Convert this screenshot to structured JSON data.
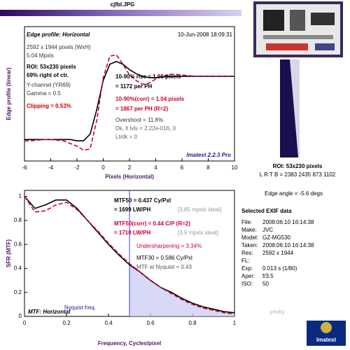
{
  "header": {
    "title": "cjfbl.JPG"
  },
  "chart_data": [
    {
      "type": "line",
      "xlabel": "Pixels (Horizontal)",
      "ylabel": "Edge profile (linear)",
      "x": [
        -6,
        -5.5,
        -5,
        -4.5,
        -4,
        -3.5,
        -3,
        -2.5,
        -2,
        -1.5,
        -1,
        -0.5,
        0,
        0.5,
        1,
        1.5,
        2,
        2.5,
        3,
        3.5,
        4,
        4.5,
        5,
        5.5,
        6,
        6.5,
        7,
        7.5,
        8,
        8.5,
        9,
        9.5,
        10
      ],
      "xlim": [
        -6,
        10
      ],
      "xticks": [
        -6,
        -4,
        -2,
        0,
        2,
        4,
        6,
        8,
        10
      ],
      "ylim": [
        0,
        1
      ],
      "series": [
        {
          "color": "#000000",
          "dash": false,
          "values": [
            0.16,
            0.16,
            0.16,
            0.16,
            0.16,
            0.16,
            0.16,
            0.16,
            0.15,
            0.15,
            0.2,
            0.38,
            0.6,
            0.72,
            0.74,
            0.72,
            0.68,
            0.65,
            0.63,
            0.62,
            0.62,
            0.625,
            0.63,
            0.63,
            0.63,
            0.63,
            0.63,
            0.63,
            0.63,
            0.63,
            0.63,
            0.63,
            0.63
          ]
        },
        {
          "color": "#cc0033",
          "dash": true,
          "values": [
            0.15,
            0.15,
            0.155,
            0.16,
            0.16,
            0.155,
            0.15,
            0.13,
            0.11,
            0.08,
            0.09,
            0.3,
            0.62,
            0.78,
            0.79,
            0.72,
            0.64,
            0.6,
            0.57,
            0.58,
            0.61,
            0.63,
            0.645,
            0.645,
            0.64,
            0.635,
            0.63,
            0.63,
            0.63,
            0.63,
            0.63,
            0.63,
            0.63
          ]
        }
      ],
      "annotations": [
        {
          "text": "Edge profile: Horizontal",
          "color": "#000000"
        },
        {
          "text": "10-Jun-2008 18:09:31",
          "color": "#000000"
        },
        {
          "text": "2592 x 1944 pixels (WxH)",
          "color": "#333333"
        },
        {
          "text": "5.04 Mpxls",
          "color": "#333333"
        },
        {
          "text": "ROI: 53x230 pixels",
          "color": "#000000"
        },
        {
          "text": "69% right of ctr.",
          "color": "#000000"
        },
        {
          "text": "Y-channel (YR69)",
          "color": "#333333"
        },
        {
          "text": "Gamma = 0.5",
          "color": "#333333"
        },
        {
          "text": "Clipping =  0.53%",
          "color": "#cc0000"
        },
        {
          "text": "10-90% rise = 1.66 pixels",
          "color": "#000000"
        },
        {
          "text": "= 1172 per PH",
          "color": "#000000"
        },
        {
          "text": "10-90%(corr) = 1.04 pixels",
          "color": "#cc0033"
        },
        {
          "text": "= 1867 per PH  (R=2)",
          "color": "#cc0033"
        },
        {
          "text": "Overshoot = 11.6%",
          "color": "#333333"
        },
        {
          "text": "Dk, lt lvls = 2.22e-016, 0",
          "color": "#666666"
        },
        {
          "text": "Lt/dk = 0",
          "color": "#666666"
        },
        {
          "text": "Imatest 2.2.3 Pro",
          "color": "#1a1aa0"
        }
      ]
    },
    {
      "type": "line",
      "xlabel": "Frequency, Cycles/pixel",
      "ylabel": "SFR (MTF)",
      "x": [
        0,
        0.05,
        0.1,
        0.15,
        0.2,
        0.25,
        0.3,
        0.35,
        0.4,
        0.45,
        0.5,
        0.55,
        0.6,
        0.65,
        0.7,
        0.75,
        0.8,
        0.85,
        0.9,
        0.95,
        1
      ],
      "xlim": [
        0,
        1
      ],
      "xticks": [
        0,
        0.2,
        0.4,
        0.6,
        0.8,
        1
      ],
      "ylim": [
        0,
        1.05
      ],
      "yticks": [
        0,
        0.2,
        0.4,
        0.6,
        0.8,
        1
      ],
      "nyquist": 0.5,
      "series": [
        {
          "color": "#000000",
          "dash": false,
          "values": [
            1,
            0.9,
            0.93,
            0.97,
            0.97,
            0.9,
            0.8,
            0.7,
            0.6,
            0.51,
            0.43,
            0.37,
            0.3,
            0.24,
            0.2,
            0.15,
            0.11,
            0.08,
            0.06,
            0.04,
            0.03
          ]
        },
        {
          "color": "#cc0033",
          "dash": true,
          "values": [
            1,
            0.87,
            0.88,
            0.93,
            0.95,
            0.89,
            0.8,
            0.71,
            0.61,
            0.52,
            0.44,
            0.37,
            0.3,
            0.24,
            0.19,
            0.14,
            0.1,
            0.07,
            0.05,
            0.03,
            0.02
          ]
        }
      ],
      "annotations": [
        {
          "text": "MTF50 = 0.437 Cy/Pxl",
          "color": "#000000"
        },
        {
          "text": "= 1699 LW/PH",
          "color": "#000000"
        },
        {
          "text": "[3.85 mpxls ideal]",
          "color": "#999999"
        },
        {
          "text": "MTF50(corr) = 0.44 C/P  (R=2)",
          "color": "#cc0033"
        },
        {
          "text": "= 1710 LW/PH",
          "color": "#cc0033"
        },
        {
          "text": "[3.9 mpxls ideal]",
          "color": "#999999"
        },
        {
          "text": "Undersharpening = 3.34%",
          "color": "#cc0033"
        },
        {
          "text": "MTF30 = 0.586 Cy/Pxl",
          "color": "#000000"
        },
        {
          "text": "MTF at Nyquist = 0.43",
          "color": "#555555"
        },
        {
          "text": "Nyquist freq.",
          "color": "#1a1aa0"
        },
        {
          "text": "MTF: Horizontal",
          "color": "#000000"
        }
      ]
    }
  ],
  "side_panel": {
    "roi": "ROI: 53x230 pixels",
    "lrtb": "L R T B = 2383 2435  873 1102",
    "edge_angle": "Edge angle = -5.6 degs",
    "exif_title": "Selected EXIF data",
    "exif_rows": [
      [
        "File:",
        "2008:06:10 16:14:38"
      ],
      [
        "Make:",
        "JVC"
      ],
      [
        "Model:",
        "GZ-MG530"
      ],
      [
        "Taken:",
        "2008:06:10 16:14:38"
      ],
      [
        "Res:",
        "2592 x 1944"
      ],
      [
        "FL:"
      ],
      [
        "Exp:",
        "0.013 s  (1/80)"
      ],
      [
        "Aper:",
        "f/3.5"
      ],
      [
        "ISO:",
        "50"
      ]
    ],
    "logo": "Imatest",
    "watermark": "yesky"
  }
}
